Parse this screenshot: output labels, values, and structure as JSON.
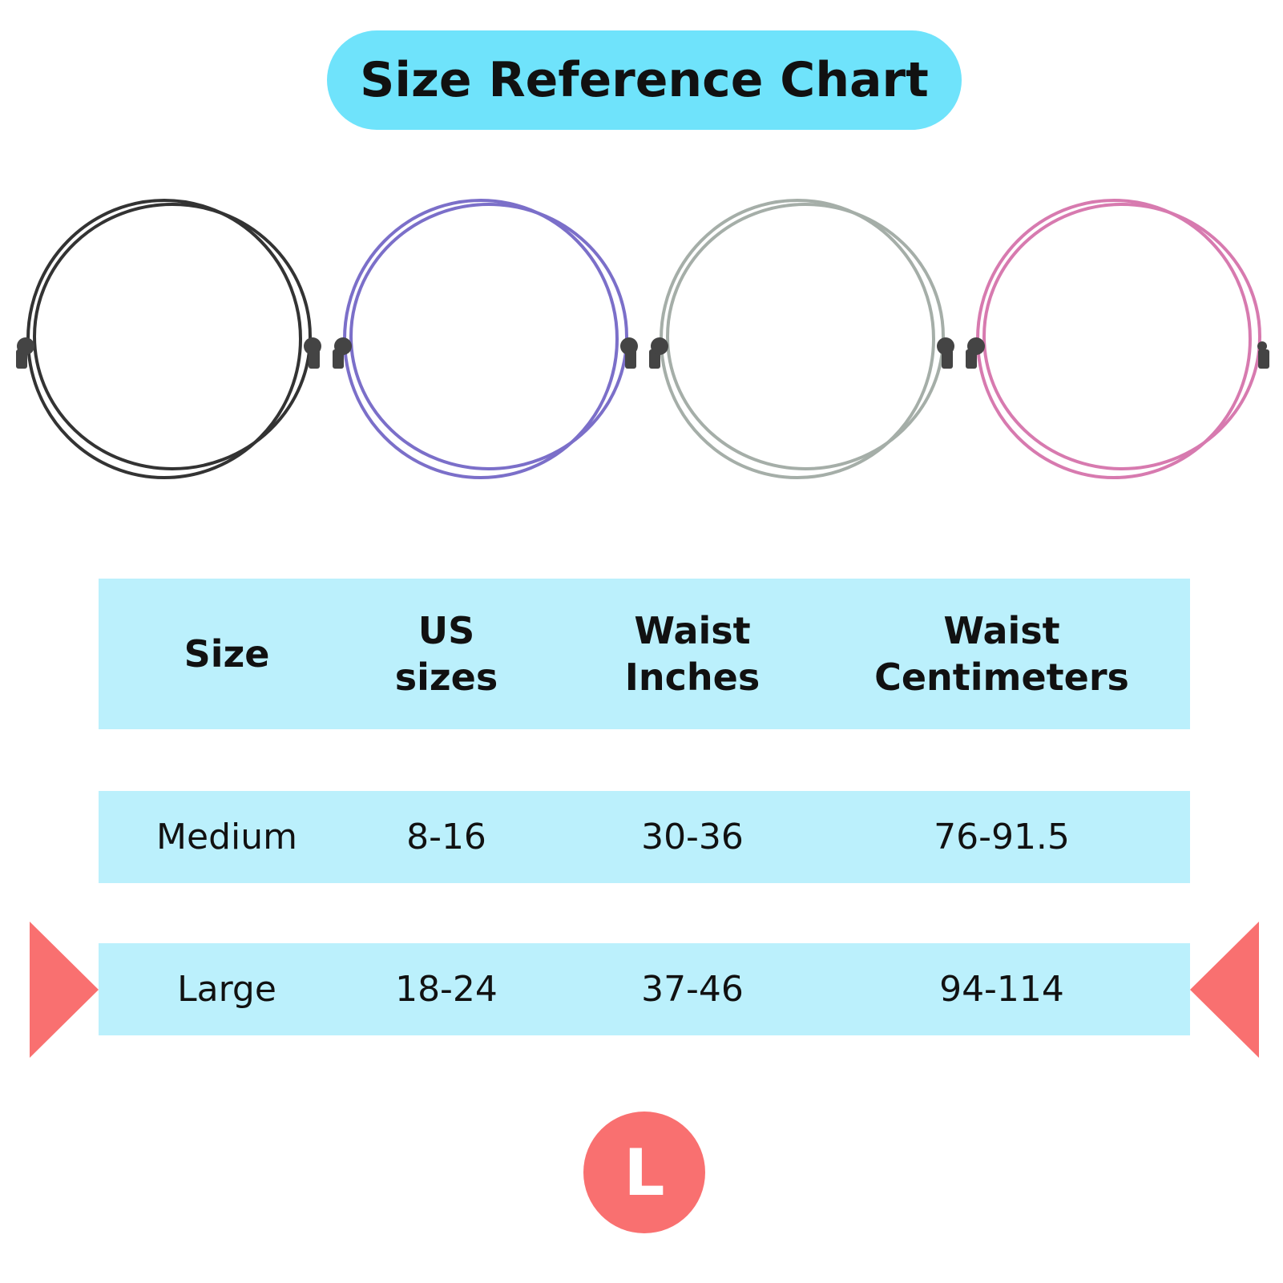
{
  "header": {
    "title": "Size Reference Chart"
  },
  "table": {
    "columns": [
      "Size",
      "US sizes",
      "Waist Inches",
      "Waist Centimeters"
    ],
    "rows": [
      [
        "Medium",
        "8-16",
        "30-36",
        "76-91.5"
      ],
      [
        "Large",
        "18-24",
        "37-46",
        "94-114"
      ]
    ]
  },
  "badge": "L"
}
